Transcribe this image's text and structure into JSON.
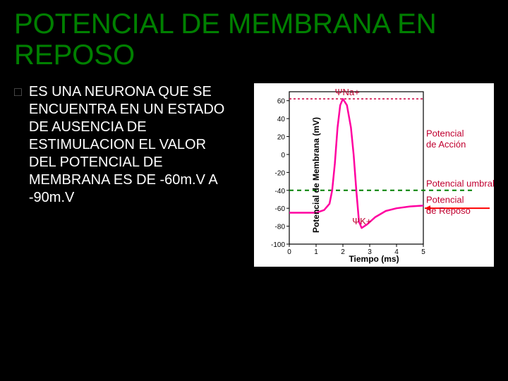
{
  "title": "POTENCIAL DE MEMBRANA EN REPOSO",
  "bullet_glyph": "□",
  "body_text": "ES UNA NEURONA QUE SE ENCUENTRA EN UN ESTADO DE AUSENCIA DE ESTIMULACION EL VALOR DEL POTENCIAL DE MEMBRANA ES DE -60m.V A -90m.V",
  "chart": {
    "type": "line",
    "x_label": "Tiempo (ms)",
    "y_label": "Potencial de Membrana (mV)",
    "xlim": [
      0,
      5
    ],
    "ylim": [
      -100,
      70
    ],
    "xtick_step": 1,
    "yticks": [
      -100,
      -80,
      -60,
      -40,
      -20,
      0,
      20,
      40,
      60
    ],
    "background_color": "#ffffff",
    "axis_color": "#000000",
    "series": {
      "color": "#ff00a0",
      "stroke_width": 2.5,
      "points": [
        [
          0.0,
          -65
        ],
        [
          1.0,
          -65
        ],
        [
          1.3,
          -62
        ],
        [
          1.5,
          -55
        ],
        [
          1.6,
          -40
        ],
        [
          1.7,
          -10
        ],
        [
          1.8,
          30
        ],
        [
          1.9,
          55
        ],
        [
          2.0,
          62
        ],
        [
          2.15,
          55
        ],
        [
          2.3,
          30
        ],
        [
          2.4,
          0
        ],
        [
          2.5,
          -40
        ],
        [
          2.6,
          -75
        ],
        [
          2.7,
          -82
        ],
        [
          2.9,
          -78
        ],
        [
          3.2,
          -70
        ],
        [
          3.6,
          -63
        ],
        [
          4.0,
          -60
        ],
        [
          4.5,
          -58
        ],
        [
          5.0,
          -57
        ]
      ]
    },
    "threshold_line": {
      "y": -40,
      "color": "#008000",
      "dash": "6,5",
      "stroke_width": 2
    },
    "na_line": {
      "y": 62,
      "color": "#cc0040",
      "dash": "3,3",
      "stroke_width": 1.5
    },
    "annotations": {
      "na": "ΨNa+",
      "k": "ΨK+",
      "accion": "Potencial de Acción",
      "umbral": "Potencial umbral",
      "reposo": "Potencial de Reposo"
    },
    "annotation_color": "#c00030",
    "annotation_fontsize": 13,
    "arrow_color": "#ff0000"
  }
}
